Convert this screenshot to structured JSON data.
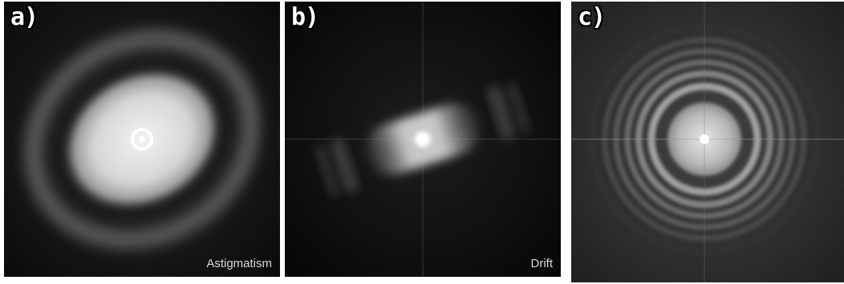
{
  "panels": [
    {
      "letter": "a)",
      "caption": "Astigmatism"
    },
    {
      "letter": "b)",
      "caption": "Drift"
    },
    {
      "letter": "c)",
      "caption": ""
    }
  ]
}
